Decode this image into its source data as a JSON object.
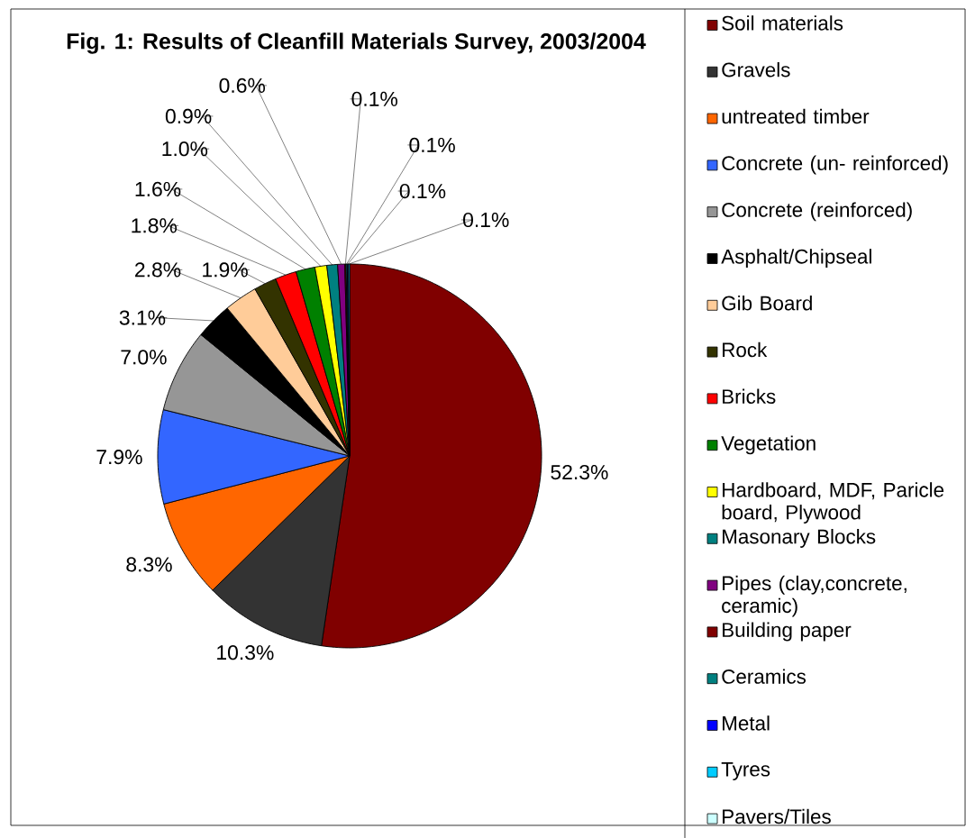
{
  "chart_data": {
    "type": "pie",
    "title": "Fig. 1: Results of Cleanfill Materials Survey, 2003/2004",
    "categories": [
      "Soil materials",
      "Gravels",
      "untreated timber",
      "Concrete (un- reinforced)",
      "Concrete (reinforced)",
      "Asphalt/Chipseal",
      "Gib Board",
      "Rock",
      "Bricks",
      "Vegetation",
      "Hardboard, MDF, Paricle board, Plywood",
      "Masonary Blocks",
      "Pipes  (clay,concrete, ceramic)",
      "Building paper",
      "Ceramics",
      "Metal",
      "Tyres",
      "Pavers/Tiles"
    ],
    "values": [
      52.3,
      10.3,
      8.3,
      7.9,
      7.0,
      3.1,
      2.8,
      1.9,
      1.8,
      1.6,
      1.0,
      0.9,
      0.6,
      0.1,
      0.1,
      0.1,
      0.1,
      0
    ],
    "value_labels": [
      "52.3%",
      "10.3%",
      "8.3%",
      "7.9%",
      "7.0%",
      "3.1%",
      "2.8%",
      "1.9%",
      "1.8%",
      "1.6%",
      "1.0%",
      "0.9%",
      "0.6%",
      "0.1%",
      "0.1%",
      "0.1%",
      "0.1%",
      null
    ],
    "colors": [
      "#800000",
      "#333333",
      "#ff6600",
      "#3366ff",
      "#969696",
      "#000000",
      "#ffcc99",
      "#333300",
      "#ff0000",
      "#008000",
      "#ffff00",
      "#008080",
      "#800080",
      "#800000",
      "#008080",
      "#0000ff",
      "#00ccff",
      "#ccffff"
    ],
    "legend": "right"
  }
}
